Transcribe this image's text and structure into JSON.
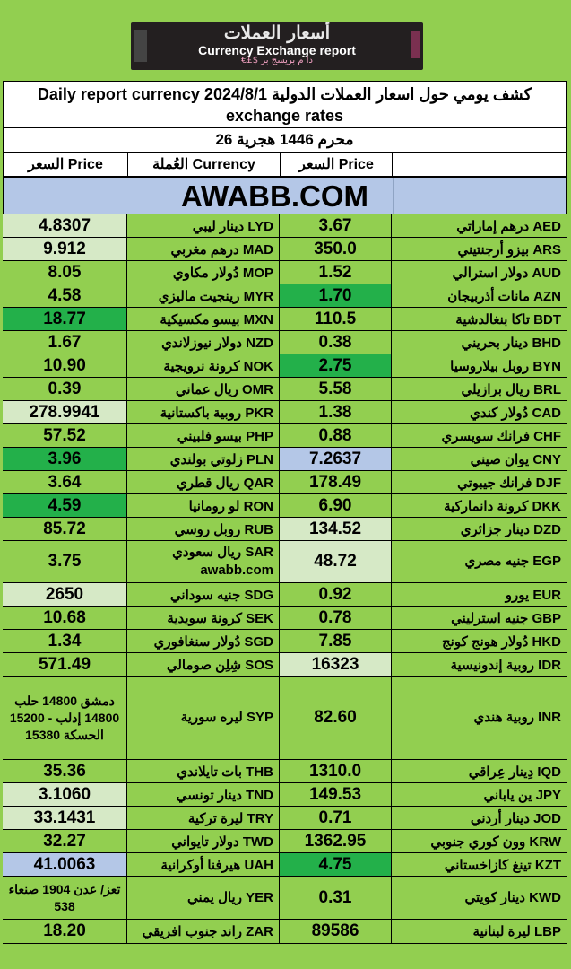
{
  "banner": {
    "arabic_title": "أسعار العملات",
    "english_title": "Currency Exchange report",
    "subtitle": "€£$ دا م بريسج بر"
  },
  "header": {
    "title": "Daily report currency 2024/8/1 كشف يومي حول اسعار العملات الدولية exchange rates",
    "date": "26 محرم  1446 هجرية",
    "col_price_left": "السعر Price",
    "col_currency": "العُملة Currency",
    "col_price_mid": "السعر Price",
    "col_blank": ""
  },
  "site": "AWABB.COM",
  "rows": [
    {
      "p2": "4.8307",
      "c2": "دينار ليبي  LYD",
      "p1": "3.67",
      "c1": "درهم إماراتي  AED",
      "s2": "light",
      "s1": ""
    },
    {
      "p2": "9.912",
      "c2": "درهم مغربي  MAD",
      "p1": "350.0",
      "c1": "بيزو أرجنتيني  ARS",
      "s2": "light",
      "s1": ""
    },
    {
      "p2": "8.05",
      "c2": "دُولار مكاوي  MOP",
      "p1": "1.52",
      "c1": "دولار استرالي  AUD",
      "s2": "",
      "s1": ""
    },
    {
      "p2": "4.58",
      "c2": "رينجيت ماليزي  MYR",
      "p1": "1.70",
      "c1": "مانات أذربيجان  AZN",
      "s2": "",
      "s1": "dark"
    },
    {
      "p2": "18.77",
      "c2": "بيسو مكسيكية  MXN",
      "p1": "110.5",
      "c1": "تاكا بنغالدشية  BDT",
      "s2": "dark",
      "s1": ""
    },
    {
      "p2": "1.67",
      "c2": "دولار نيوزلاندي  NZD",
      "p1": "0.38",
      "c1": "دينار بحريني  BHD",
      "s2": "",
      "s1": ""
    },
    {
      "p2": "10.90",
      "c2": "كرونة نرويجية  NOK",
      "p1": "2.75",
      "c1": "روبل بيلاروسيا  BYN",
      "s2": "",
      "s1": "dark"
    },
    {
      "p2": "0.39",
      "c2": "ريال عماني  OMR",
      "p1": "5.58",
      "c1": "ريال برازيلي  BRL",
      "s2": "",
      "s1": ""
    },
    {
      "p2": "278.9941",
      "c2": "روبية باكستانية  PKR",
      "p1": "1.38",
      "c1": "دُولار كندي  CAD",
      "s2": "light",
      "s1": ""
    },
    {
      "p2": "57.52",
      "c2": "بيسو فلبيني  PHP",
      "p1": "0.88",
      "c1": "فرانك سويسري  CHF",
      "s2": "",
      "s1": ""
    },
    {
      "p2": "3.96",
      "c2": "زلوتي  بولندي  PLN",
      "p1": "7.2637",
      "c1": "يوان صيني  CNY",
      "s2": "dark",
      "s1": "blue"
    },
    {
      "p2": "3.64",
      "c2": "ريال قطري  QAR",
      "p1": "178.49",
      "c1": "فرانك جيبوتي  DJF",
      "s2": "",
      "s1": ""
    },
    {
      "p2": "4.59",
      "c2": "لو رومانيا  RON",
      "p1": "6.90",
      "c1": "كرونة دانماركية  DKK",
      "s2": "dark",
      "s1": ""
    },
    {
      "p2": "85.72",
      "c2": "روبل روسي  RUB",
      "p1": "134.52",
      "c1": "دينار جزائري  DZD",
      "s2": "",
      "s1": "light"
    },
    {
      "p2": "3.75",
      "c2": "ريال سعودي  SAR awabb.com",
      "p1": "48.72",
      "c1": "جنيه مصري  EGP",
      "s2": "",
      "s1": "light"
    },
    {
      "p2": "2650",
      "c2": "جنيه سوداني  SDG",
      "p1": "0.92",
      "c1": "يورو  EUR",
      "s2": "light",
      "s1": ""
    },
    {
      "p2": "10.68",
      "c2": "كرونة سويدية  SEK",
      "p1": "0.78",
      "c1": "جنيه استرليني  GBP",
      "s2": "",
      "s1": ""
    },
    {
      "p2": "1.34",
      "c2": "دُولار سنغافوري  SGD",
      "p1": "7.85",
      "c1": "دُولار هونج كونج  HKD",
      "s2": "",
      "s1": ""
    },
    {
      "p2": "571.49",
      "c2": "شِلِن صومالي  SOS",
      "p1": "16323",
      "c1": "روبية إندونيسية  IDR",
      "s2": "",
      "s1": "light"
    },
    {
      "p2": "دمشق 14800 حلب 14800 إدلب - 15200 الحسكة 15380",
      "c2": "ليره سورية  SYP",
      "p1": "82.60",
      "c1": "روبية هندي  INR",
      "s2": "",
      "s1": ""
    },
    {
      "p2": "35.36",
      "c2": "بات تايلاندي  THB",
      "p1": "1310.0",
      "c1": "دِينار عِراقي  IQD",
      "s2": "",
      "s1": ""
    },
    {
      "p2": "3.1060",
      "c2": "دينار تونسي  TND",
      "p1": "149.53",
      "c1": "ين ياباني  JPY",
      "s2": "light",
      "s1": ""
    },
    {
      "p2": "33.1431",
      "c2": "ليرة تركية  TRY",
      "p1": "0.71",
      "c1": "دينار أردني  JOD",
      "s2": "light",
      "s1": ""
    },
    {
      "p2": "32.27",
      "c2": "دولار تايواني  TWD",
      "p1": "1362.95",
      "c1": "وون كوري جنوبي  KRW",
      "s2": "",
      "s1": ""
    },
    {
      "p2": "41.0063",
      "c2": "هيرفنا أوكرانية  UAH",
      "p1": "4.75",
      "c1": "تينغ كازاخستاني  KZT",
      "s2": "blue",
      "s1": "dark"
    },
    {
      "p2": "تعز/ عدن 1904 صنعاء 538",
      "c2": "ريال يمني  YER",
      "p1": "0.31",
      "c1": "دينار كويتي  KWD",
      "s2": "",
      "s1": ""
    },
    {
      "p2": "18.20",
      "c2": "راند جنوب افريقي  ZAR",
      "p1": "89586",
      "c1": "ليرة لبنانية  LBP",
      "s2": "",
      "s1": ""
    }
  ]
}
